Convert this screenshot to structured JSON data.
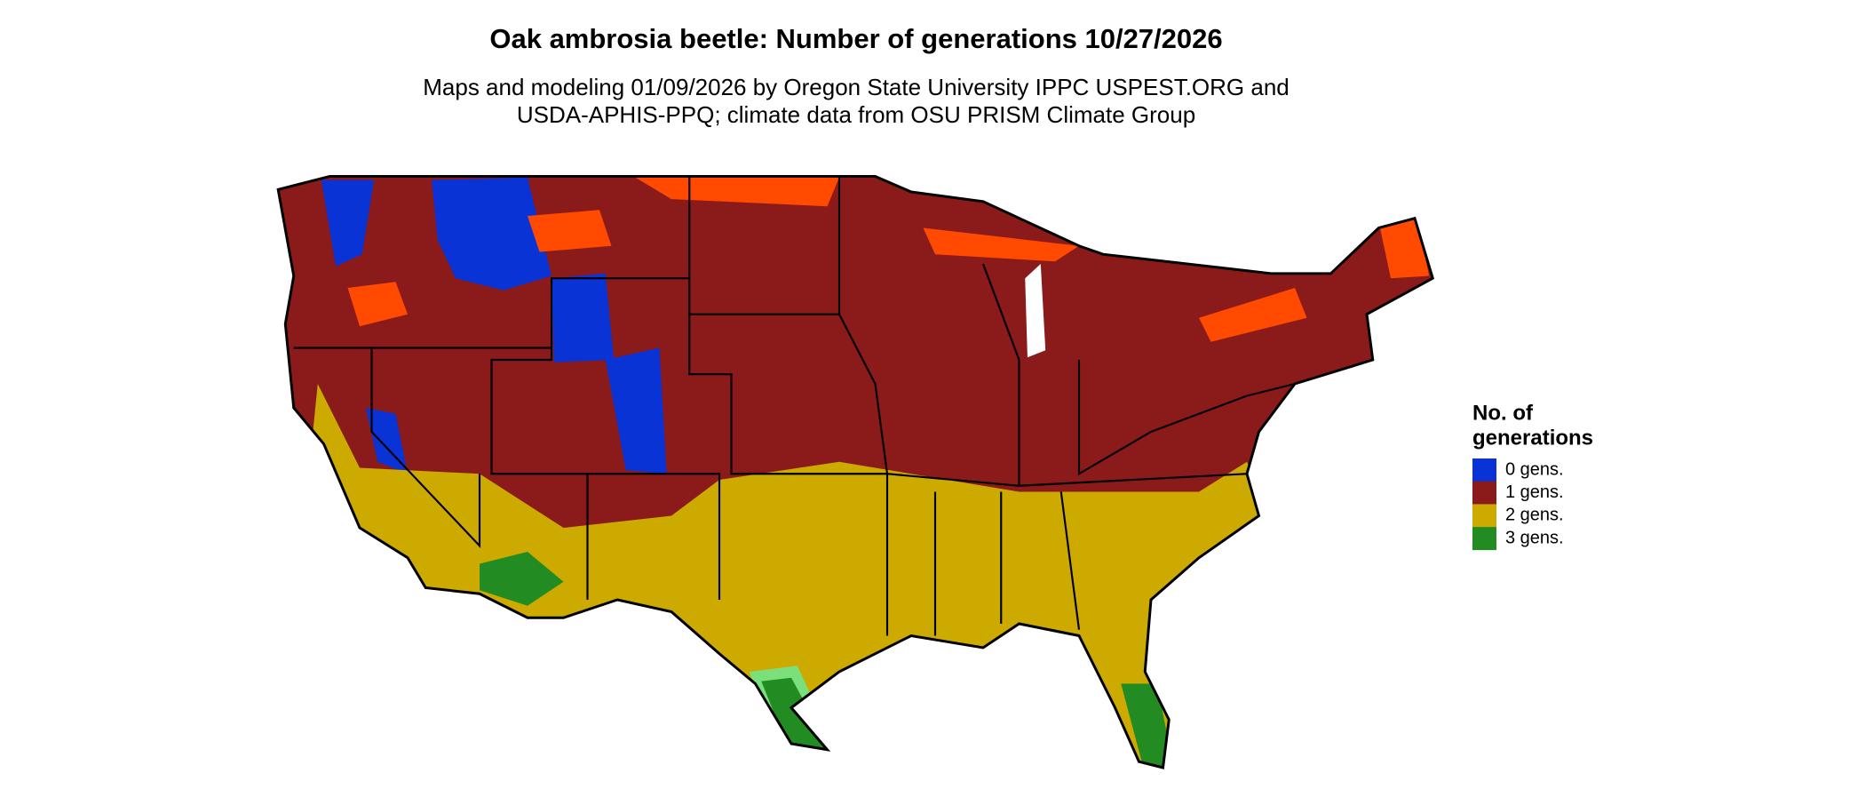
{
  "header": {
    "title": "Oak ambrosia beetle: Number of generations 10/27/2026",
    "subtitle": [
      "Maps and modeling 01/09/2026 by Oregon State University IPPC USPEST.ORG and",
      "USDA-APHIS-PPQ; climate data from OSU PRISM Climate Group"
    ]
  },
  "legend": {
    "title": [
      "No. of",
      "generations"
    ],
    "items": [
      {
        "label": "0 gens.",
        "color": "#0a33d6"
      },
      {
        "label": "1 gens.",
        "color": "#8b1a1a"
      },
      {
        "label": "2 gens.",
        "color": "#cdaa00"
      },
      {
        "label": "3 gens.",
        "color": "#228b22"
      }
    ]
  }
}
